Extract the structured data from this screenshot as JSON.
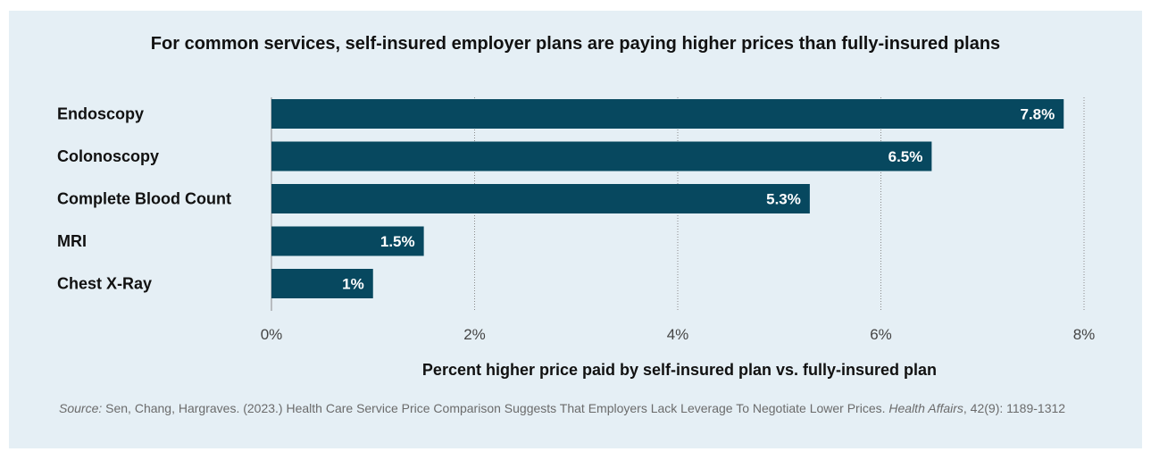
{
  "chart_data": {
    "type": "bar",
    "orientation": "horizontal",
    "title": "For common services, self-insured employer plans are paying higher prices than fully-insured plans",
    "xlabel": "Percent higher price paid by self-insured plan vs. fully-insured plan",
    "ylabel": "",
    "categories": [
      "Endoscopy",
      "Colonoscopy",
      "Complete Blood Count",
      "MRI",
      "Chest X-Ray"
    ],
    "values": [
      7.8,
      6.5,
      5.3,
      1.5,
      1.0
    ],
    "value_labels": [
      "7.8%",
      "6.5%",
      "5.3%",
      "1.5%",
      "1%"
    ],
    "xlim": [
      0,
      8
    ],
    "xticks": [
      0,
      2,
      4,
      6,
      8
    ],
    "xtick_labels": [
      "0%",
      "2%",
      "4%",
      "6%",
      "8%"
    ],
    "grid": "vertical dotted",
    "colors": {
      "bar": "#07485f",
      "bar_label": "#ffffff",
      "background": "#e5eff5",
      "grid": "#8a8a8a"
    }
  },
  "source": {
    "label": "Source:",
    "text_1": " Sen, Chang, Hargraves. (2023.) Health Care Service Price Comparison Suggests That Employers Lack Leverage To Negotiate Lower Prices. ",
    "journal": "Health Affairs",
    "text_2": ", 42(9): 1189-1312"
  }
}
